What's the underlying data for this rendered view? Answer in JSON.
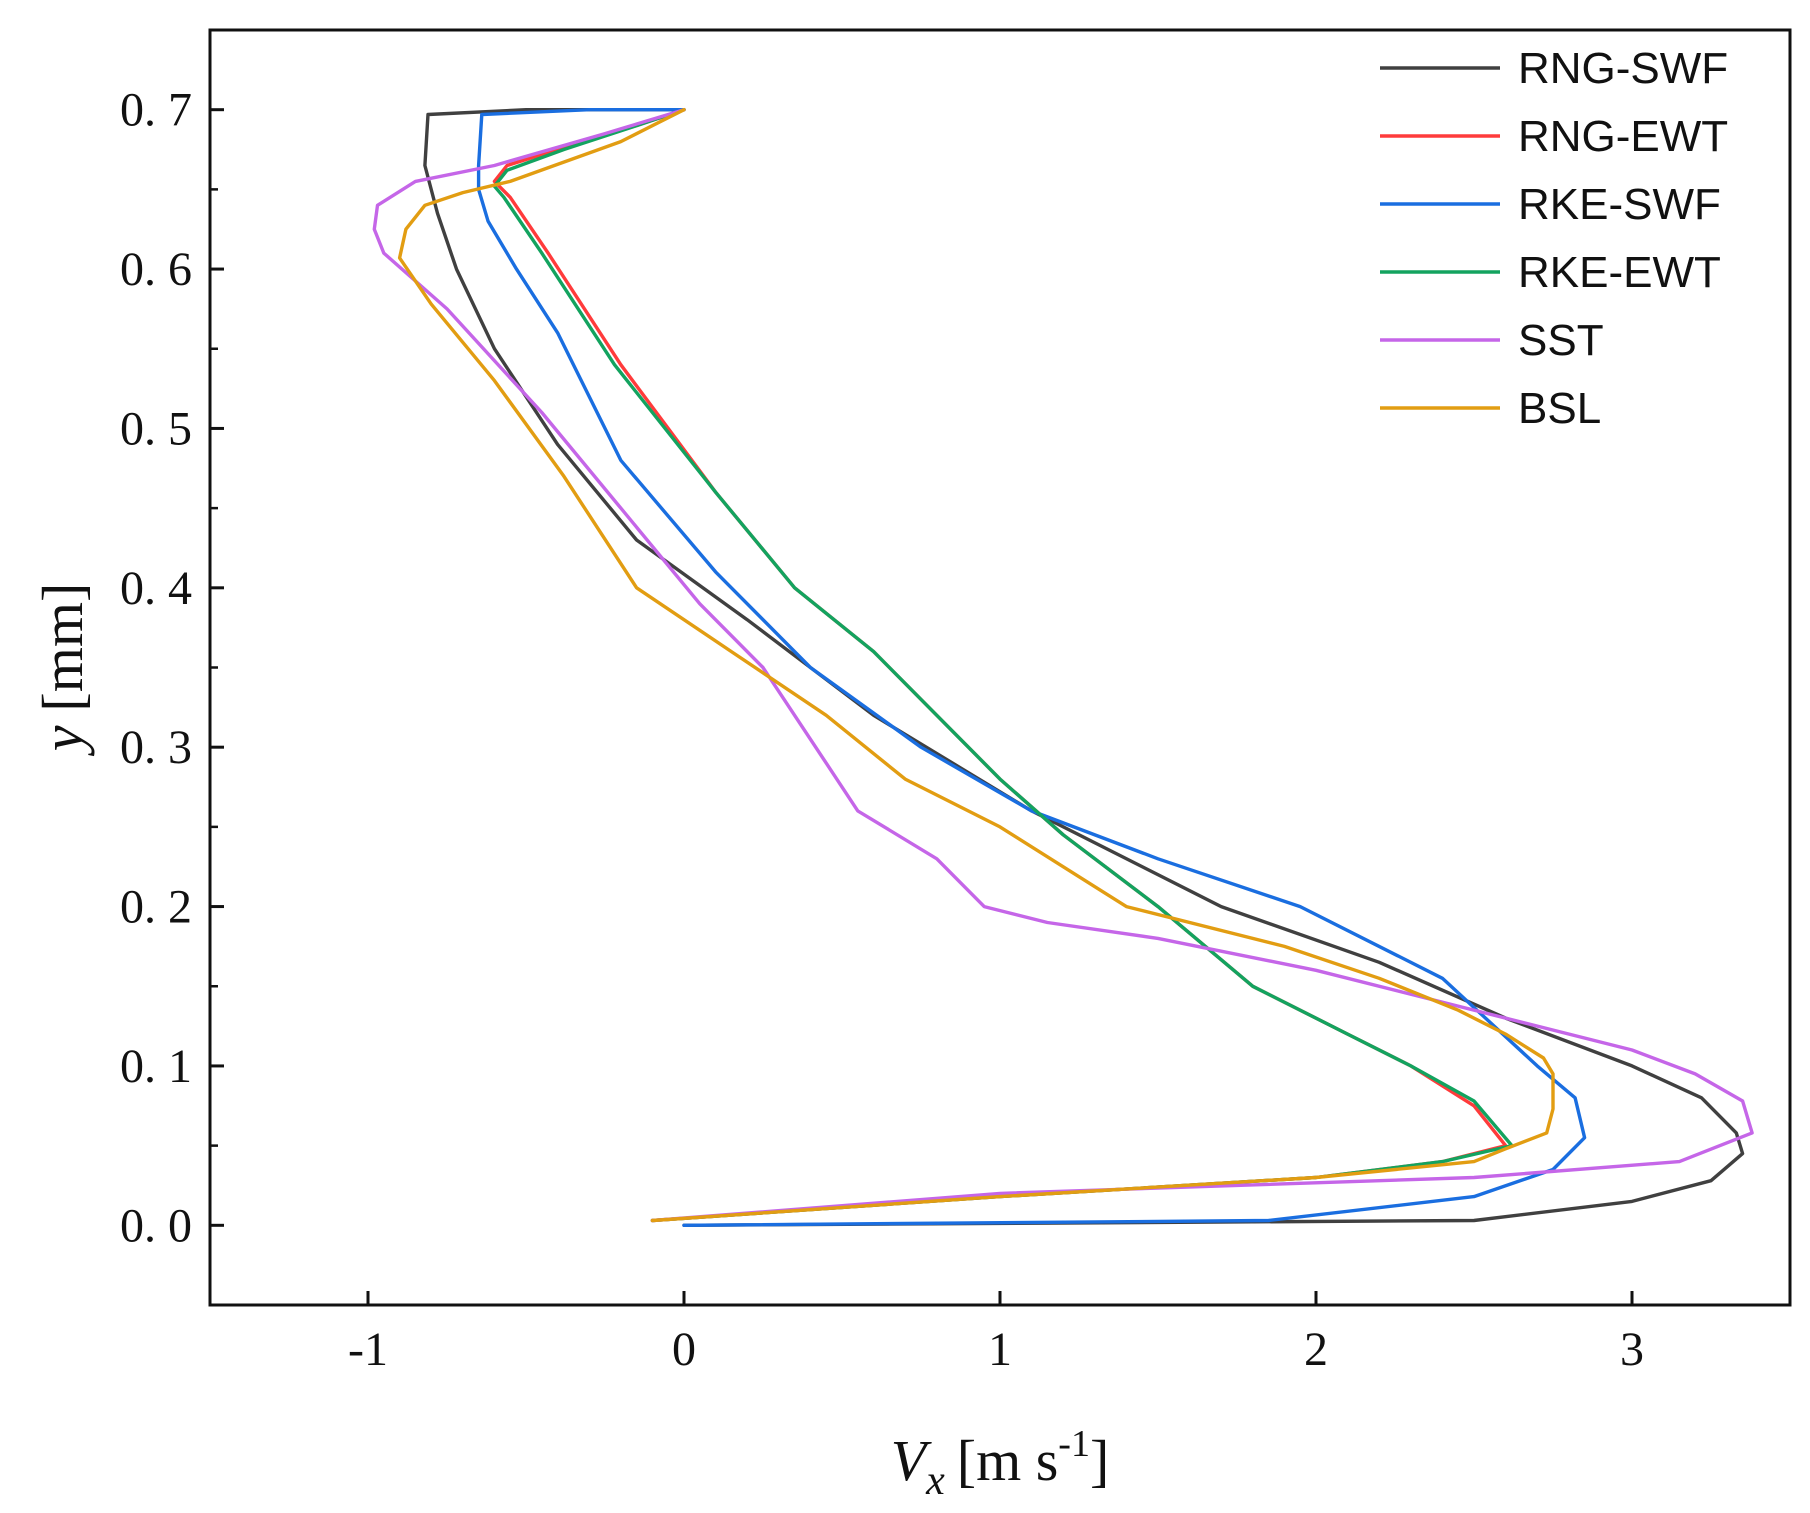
{
  "chart_data": {
    "type": "line",
    "title": "",
    "xlabel": "V",
    "xlabel_subscript": "x",
    "xlabel_units": "[m s",
    "xlabel_exponent": "-1",
    "xlabel_close": "]",
    "ylabel": "y",
    "ylabel_units": "[mm]",
    "xlim": [
      -1.5,
      3.5
    ],
    "ylim": [
      -0.05,
      0.75
    ],
    "x_ticks": [
      -1,
      0,
      1,
      2,
      3
    ],
    "x_tick_labels": [
      "-1",
      "0",
      "1",
      "2",
      "3"
    ],
    "y_ticks": [
      0.0,
      0.1,
      0.2,
      0.3,
      0.4,
      0.5,
      0.6,
      0.7
    ],
    "y_tick_labels": [
      "0. 0",
      "0. 1",
      "0. 2",
      "0. 3",
      "0. 4",
      "0. 5",
      "0. 6",
      "0. 7"
    ],
    "grid": false,
    "legend_position": "top-right",
    "series": [
      {
        "name": "RNG-SWF",
        "color": "#404040",
        "x": [
          0.0,
          2.5,
          3.0,
          3.25,
          3.35,
          3.33,
          3.22,
          3.0,
          2.6,
          2.2,
          1.7,
          1.1,
          0.6,
          0.2,
          -0.15,
          -0.4,
          -0.6,
          -0.72,
          -0.78,
          -0.82,
          -0.81,
          -0.5,
          0.0
        ],
        "y": [
          0.0,
          0.003,
          0.015,
          0.028,
          0.045,
          0.058,
          0.08,
          0.1,
          0.13,
          0.165,
          0.2,
          0.26,
          0.32,
          0.38,
          0.43,
          0.49,
          0.55,
          0.6,
          0.635,
          0.665,
          0.697,
          0.7,
          0.7
        ]
      },
      {
        "name": "RNG-EWT",
        "color": "#ff3b3b",
        "x": [
          -0.1,
          1.0,
          2.0,
          2.4,
          2.6,
          2.5,
          2.3,
          2.1,
          1.8,
          1.5,
          1.2,
          1.0,
          0.6,
          0.35,
          0.1,
          -0.2,
          -0.43,
          -0.55,
          -0.6,
          -0.56,
          -0.4,
          -0.15,
          0.0
        ],
        "y": [
          0.003,
          0.018,
          0.03,
          0.04,
          0.05,
          0.075,
          0.1,
          0.12,
          0.15,
          0.2,
          0.245,
          0.28,
          0.36,
          0.4,
          0.46,
          0.54,
          0.61,
          0.645,
          0.655,
          0.665,
          0.675,
          0.69,
          0.7
        ]
      },
      {
        "name": "RKE-SWF",
        "color": "#1a6ee0",
        "x": [
          0.0,
          1.85,
          2.5,
          2.75,
          2.85,
          2.82,
          2.7,
          2.4,
          1.95,
          1.5,
          1.1,
          0.75,
          0.4,
          0.1,
          -0.2,
          -0.4,
          -0.53,
          -0.62,
          -0.65,
          -0.65,
          -0.64,
          -0.3,
          0.0
        ],
        "y": [
          0.0,
          0.003,
          0.018,
          0.035,
          0.055,
          0.08,
          0.1,
          0.155,
          0.2,
          0.23,
          0.26,
          0.3,
          0.35,
          0.41,
          0.48,
          0.56,
          0.6,
          0.63,
          0.65,
          0.665,
          0.697,
          0.7,
          0.7
        ]
      },
      {
        "name": "RKE-EWT",
        "color": "#13a35f",
        "x": [
          -0.1,
          1.0,
          2.0,
          2.4,
          2.62,
          2.5,
          2.3,
          2.1,
          1.8,
          1.5,
          1.2,
          1.0,
          0.6,
          0.35,
          0.1,
          -0.22,
          -0.45,
          -0.57,
          -0.6,
          -0.56,
          -0.38,
          -0.15,
          0.0
        ],
        "y": [
          0.003,
          0.018,
          0.03,
          0.04,
          0.05,
          0.078,
          0.1,
          0.12,
          0.15,
          0.2,
          0.245,
          0.28,
          0.36,
          0.4,
          0.46,
          0.54,
          0.61,
          0.645,
          0.652,
          0.662,
          0.675,
          0.69,
          0.7
        ]
      },
      {
        "name": "SST",
        "color": "#c566e8",
        "x": [
          -0.1,
          1.0,
          2.5,
          3.15,
          3.38,
          3.35,
          3.2,
          3.0,
          2.0,
          1.5,
          1.15,
          0.95,
          0.8,
          0.55,
          0.45,
          0.25,
          0.05,
          -0.2,
          -0.45,
          -0.75,
          -0.95,
          -0.98,
          -0.97,
          -0.85,
          -0.6,
          -0.25,
          0.0
        ],
        "y": [
          0.003,
          0.02,
          0.03,
          0.04,
          0.058,
          0.078,
          0.095,
          0.11,
          0.16,
          0.18,
          0.19,
          0.2,
          0.23,
          0.26,
          0.29,
          0.35,
          0.39,
          0.45,
          0.51,
          0.575,
          0.61,
          0.625,
          0.64,
          0.655,
          0.665,
          0.685,
          0.7
        ]
      },
      {
        "name": "BSL",
        "color": "#e29d12",
        "x": [
          -0.1,
          1.0,
          2.0,
          2.5,
          2.6,
          2.73,
          2.75,
          2.75,
          2.72,
          2.6,
          2.45,
          2.2,
          1.9,
          1.4,
          1.0,
          0.7,
          0.45,
          0.15,
          -0.15,
          -0.38,
          -0.6,
          -0.8,
          -0.9,
          -0.88,
          -0.82,
          -0.7,
          -0.55,
          -0.2,
          0.0
        ],
        "y": [
          0.003,
          0.018,
          0.03,
          0.04,
          0.048,
          0.058,
          0.073,
          0.095,
          0.105,
          0.12,
          0.135,
          0.155,
          0.175,
          0.2,
          0.25,
          0.28,
          0.32,
          0.36,
          0.4,
          0.47,
          0.53,
          0.578,
          0.607,
          0.625,
          0.64,
          0.648,
          0.655,
          0.68,
          0.7
        ]
      }
    ]
  }
}
